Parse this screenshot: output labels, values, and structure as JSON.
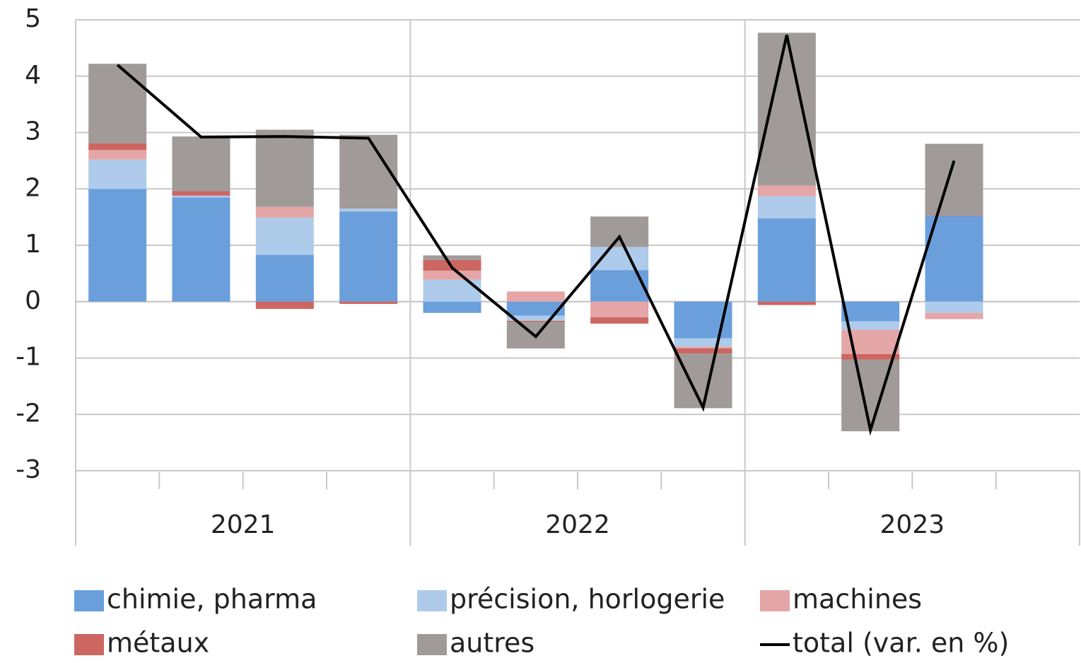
{
  "chart_data": {
    "type": "stacked-bar-line",
    "categories": [
      null,
      null,
      null,
      null,
      null,
      null,
      null,
      null,
      null,
      null,
      null,
      null
    ],
    "groups": [
      {
        "label": "2021",
        "count": 4
      },
      {
        "label": "2022",
        "count": 4
      },
      {
        "label": "2023",
        "count": 4
      }
    ],
    "series": [
      {
        "name": "chimie, pharma",
        "color": "#6a9fdc",
        "values": [
          2.0,
          1.85,
          0.83,
          1.6,
          -0.2,
          -0.25,
          0.56,
          -0.65,
          1.48,
          -0.35,
          1.52,
          null
        ]
      },
      {
        "name": "précision, horlogerie",
        "color": "#aecbeb",
        "values": [
          0.52,
          0.03,
          0.66,
          0.05,
          0.39,
          -0.09,
          0.41,
          -0.15,
          0.39,
          -0.15,
          -0.2,
          null
        ]
      },
      {
        "name": "machines",
        "color": "#e4a6a6",
        "values": [
          0.17,
          0,
          0.19,
          0,
          0.16,
          0.18,
          -0.28,
          -0.03,
          0.19,
          -0.43,
          -0.11,
          null
        ]
      },
      {
        "name": "métaux",
        "color": "#cc6661",
        "values": [
          0.12,
          0.08,
          -0.13,
          -0.04,
          0.19,
          -0.02,
          -0.11,
          -0.09,
          -0.06,
          -0.1,
          0.01,
          null
        ]
      },
      {
        "name": "autres",
        "color": "#a09b99",
        "values": [
          1.41,
          0.97,
          1.37,
          1.31,
          0.08,
          -0.47,
          0.54,
          -0.97,
          2.71,
          -1.27,
          1.27,
          null
        ]
      }
    ],
    "line": {
      "name": "total (var. en %)",
      "color": "#000000",
      "values": [
        4.2,
        2.92,
        2.93,
        2.9,
        0.6,
        -0.62,
        1.15,
        -1.88,
        4.73,
        -2.28,
        2.5,
        null
      ]
    },
    "ylim": [
      -3,
      5
    ],
    "yticks": [
      -3,
      -2,
      -1,
      0,
      1,
      2,
      3,
      4,
      5
    ],
    "grid": true
  }
}
